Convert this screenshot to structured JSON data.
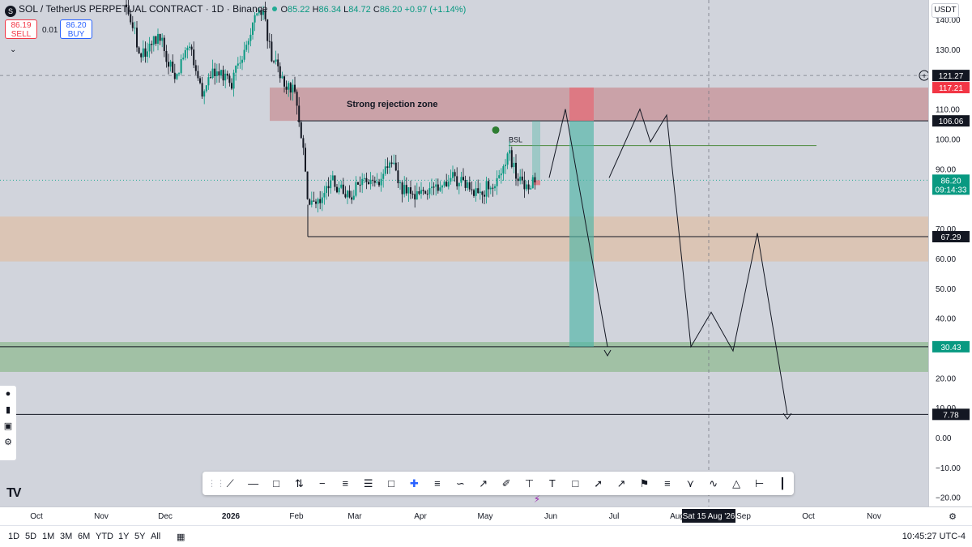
{
  "header": {
    "symbol_icon": "S",
    "title": "SOL / TetherUS PERPETUAL CONTRACT · 1D · Binance",
    "ohlc": {
      "o_label": "O",
      "o": "85.22",
      "h_label": "H",
      "h": "86.34",
      "l_label": "L",
      "l": "84.72",
      "c_label": "C",
      "c": "86.20",
      "change": "+0.97 (+1.14%)"
    },
    "sell_price": "86.19",
    "sell_label": "SELL",
    "spread": "0.01",
    "buy_price": "86.20",
    "buy_label": "BUY",
    "collapse_icon": "chevron-down-icon"
  },
  "currency": "USDT",
  "chart_data": {
    "type": "candlestick",
    "y_ticks": [
      "140.00",
      "130.00",
      "110.00",
      "100.00",
      "90.00",
      "70.00",
      "60.00",
      "50.00",
      "40.00",
      "20.00",
      "10.00",
      "0.00",
      "−10.00",
      "−20.00"
    ],
    "x_ticks": [
      "Oct",
      "Nov",
      "Dec",
      "2026",
      "Feb",
      "Mar",
      "Apr",
      "May",
      "Jun",
      "Jul",
      "Aug",
      "Sep",
      "Oct",
      "Nov"
    ],
    "ylim": [
      -23,
      145
    ],
    "price_labels": [
      {
        "value": "121.27",
        "kind": "crosshair"
      },
      {
        "value": "117.21",
        "kind": "red"
      },
      {
        "value": "106.06",
        "kind": "dark"
      },
      {
        "value": "86.20",
        "kind": "green"
      },
      {
        "value": "09:14:33",
        "kind": "green"
      },
      {
        "value": "67.29",
        "kind": "dark"
      },
      {
        "value": "30.43",
        "kind": "green"
      },
      {
        "value": "7.78",
        "kind": "dark"
      }
    ],
    "time_label": "Sat 15 Aug '26",
    "zones": [
      {
        "name": "Strong rejection zone",
        "from": 106.06,
        "to": 117.21,
        "color": "#c9999f",
        "label": "Strong rejection zone"
      },
      {
        "name": "orange-zone",
        "from": 59,
        "to": 74,
        "color": "#dcc3b0"
      },
      {
        "name": "green-zone",
        "from": 22,
        "to": 32,
        "color": "#9bbf9e"
      }
    ],
    "levels": [
      {
        "value": 106.06
      },
      {
        "value": 97.8,
        "label": "BSL"
      },
      {
        "value": 67.29
      },
      {
        "value": 30.43
      },
      {
        "value": 7.78
      }
    ],
    "annotations": [
      "Strong rejection zone",
      "BSL"
    ],
    "ohlc_last": {
      "open": 85.22,
      "high": 86.34,
      "low": 84.72,
      "close": 86.2
    }
  },
  "toolbar": {
    "tools": [
      "trend-line-icon",
      "horizontal-ray-icon",
      "rectangle-icon",
      "long-position-icon",
      "horizontal-line-icon",
      "fib-retracement-icon",
      "parallel-channel-icon",
      "callout-icon",
      "crosshair-icon",
      "price-range-icon",
      "curve-icon",
      "arrow-icon",
      "brush-icon",
      "anchored-vwap-icon",
      "text-icon",
      "comment-icon",
      "path-icon",
      "arrow-marker-icon",
      "flag-icon",
      "fib-channel-icon",
      "pitchfork-icon",
      "elliott-wave-icon",
      "triangle-pattern-icon",
      "date-range-icon",
      "vertical-line-icon"
    ],
    "text_tool": "T"
  },
  "bottom": {
    "timeframes": [
      "1D",
      "5D",
      "1M",
      "3M",
      "6M",
      "YTD",
      "1Y",
      "5Y",
      "All"
    ],
    "clock": "10:45:27 UTC-4"
  }
}
